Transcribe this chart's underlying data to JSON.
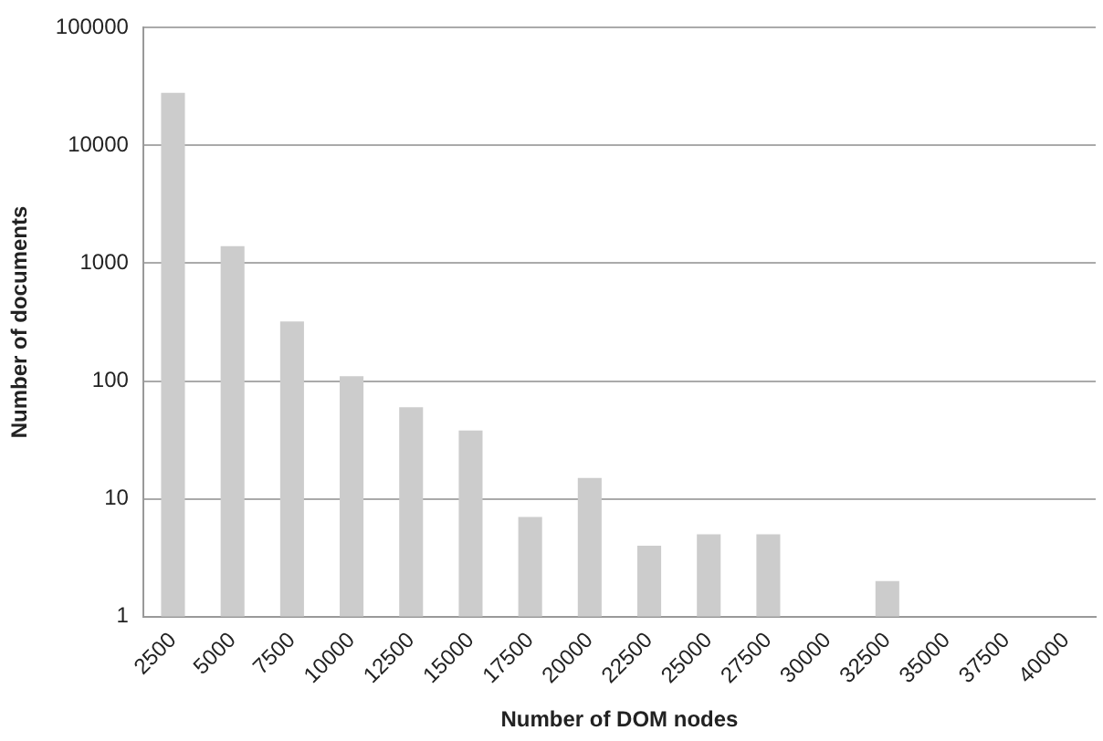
{
  "chart_data": {
    "type": "bar",
    "xlabel": "Number of DOM nodes",
    "ylabel": "Number of documents",
    "categories": [
      "2500",
      "5000",
      "7500",
      "10000",
      "12500",
      "15000",
      "17500",
      "20000",
      "22500",
      "25000",
      "27500",
      "30000",
      "32500",
      "35000",
      "37500",
      "40000"
    ],
    "values": [
      28000,
      1400,
      320,
      110,
      60,
      38,
      7,
      15,
      4,
      5,
      5,
      null,
      2,
      null,
      null,
      null
    ],
    "color": "#cccccc",
    "log": "y",
    "ylim": [
      1,
      100000
    ],
    "yticks": [
      1,
      10,
      100,
      1000,
      10000,
      100000
    ],
    "grid": "y",
    "legend": false
  }
}
